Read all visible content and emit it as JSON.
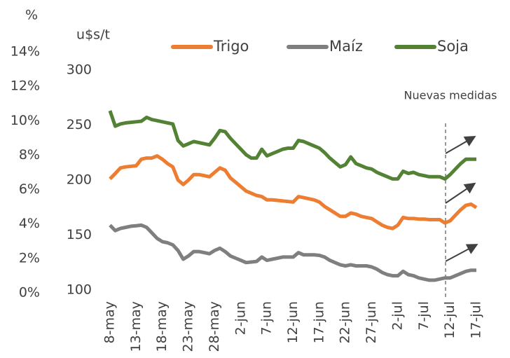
{
  "chart_data": {
    "type": "line",
    "y_label": "%",
    "y2_label": "u$s/t",
    "annotation": "Nuevas medidas",
    "categories": [
      "8-may",
      null,
      null,
      null,
      null,
      "13-may",
      null,
      null,
      null,
      null,
      "18-may",
      null,
      null,
      null,
      null,
      "23-may",
      null,
      null,
      null,
      null,
      "28-may",
      null,
      null,
      null,
      null,
      "2-jun",
      null,
      null,
      null,
      null,
      "7-jun",
      null,
      null,
      null,
      null,
      "12-jun",
      null,
      null,
      null,
      null,
      "17-jun",
      null,
      null,
      null,
      null,
      "22-jun",
      null,
      null,
      null,
      null,
      "27-jun",
      null,
      null,
      null,
      null,
      "2-jul",
      null,
      null,
      null,
      null,
      "7-jul",
      null,
      null,
      null,
      null,
      "12-jul",
      null,
      null,
      null,
      null,
      "17-jul"
    ],
    "series": [
      {
        "name": "Trigo",
        "color": "#ed7d31",
        "axis": "y2",
        "values": [
          201,
          206,
          211,
          212,
          212.5,
          213,
          219,
          220,
          220,
          222,
          219,
          215,
          212,
          200,
          196,
          200,
          205,
          205,
          204,
          203,
          207,
          211,
          209,
          202,
          198,
          194,
          190,
          188,
          186,
          185,
          182,
          182,
          181.5,
          181,
          180.5,
          180,
          185,
          184,
          183,
          182,
          180,
          176,
          173,
          170,
          167,
          167,
          170,
          169,
          167,
          166,
          165,
          162,
          159,
          157,
          156,
          159,
          166,
          165,
          165,
          164.5,
          164.5,
          164,
          164,
          164,
          161,
          163,
          168,
          173,
          177,
          178,
          175
        ]
      },
      {
        "name": "Maíz",
        "color": "#7f7f7f",
        "axis": "y2",
        "values": [
          159,
          154,
          156,
          157,
          158,
          158.5,
          159,
          157,
          152,
          147,
          144,
          143,
          141,
          136,
          128,
          131,
          135,
          135,
          134,
          133,
          136,
          138,
          135,
          131,
          129,
          127,
          125,
          125.5,
          126,
          130,
          127,
          128,
          129,
          130,
          130,
          130,
          134,
          132,
          132,
          132,
          131.5,
          130,
          127,
          125,
          123,
          122,
          123,
          122,
          122,
          122,
          121,
          119,
          116,
          114,
          113,
          113,
          117,
          114,
          113,
          111,
          110,
          109,
          109,
          110,
          111,
          111,
          113,
          115,
          117,
          118,
          118
        ]
      },
      {
        "name": "Soja",
        "color": "#548235",
        "axis": "y2",
        "values": [
          263,
          249,
          251,
          252,
          252.5,
          253,
          253.5,
          257,
          255,
          254,
          253,
          252,
          251,
          236,
          231,
          233,
          235,
          234,
          233,
          232,
          238,
          245,
          244,
          238,
          233,
          228,
          223,
          220,
          220,
          228,
          222,
          224,
          226,
          228,
          229,
          229,
          236,
          235,
          233,
          231,
          229,
          225,
          220,
          216,
          212,
          214,
          221,
          215,
          213,
          211,
          210,
          207,
          205,
          203,
          201,
          201,
          208,
          206,
          207,
          205,
          204,
          203,
          203,
          203,
          201,
          205,
          210,
          215,
          219,
          219,
          219
        ]
      }
    ],
    "ylim": [
      0,
      14
    ],
    "yticks": [
      {
        "value": 0,
        "label": "0%"
      },
      {
        "value": 2,
        "label": "2%"
      },
      {
        "value": 4,
        "label": "4%"
      },
      {
        "value": 6,
        "label": "6%"
      },
      {
        "value": 8,
        "label": "8%"
      },
      {
        "value": 10,
        "label": "10%"
      },
      {
        "value": 12,
        "label": "12%"
      },
      {
        "value": 14,
        "label": "14%"
      }
    ],
    "y2lim": [
      100,
      300
    ],
    "y2ticks": [
      100,
      150,
      200,
      250,
      300
    ],
    "grid": false,
    "legend": "top"
  }
}
